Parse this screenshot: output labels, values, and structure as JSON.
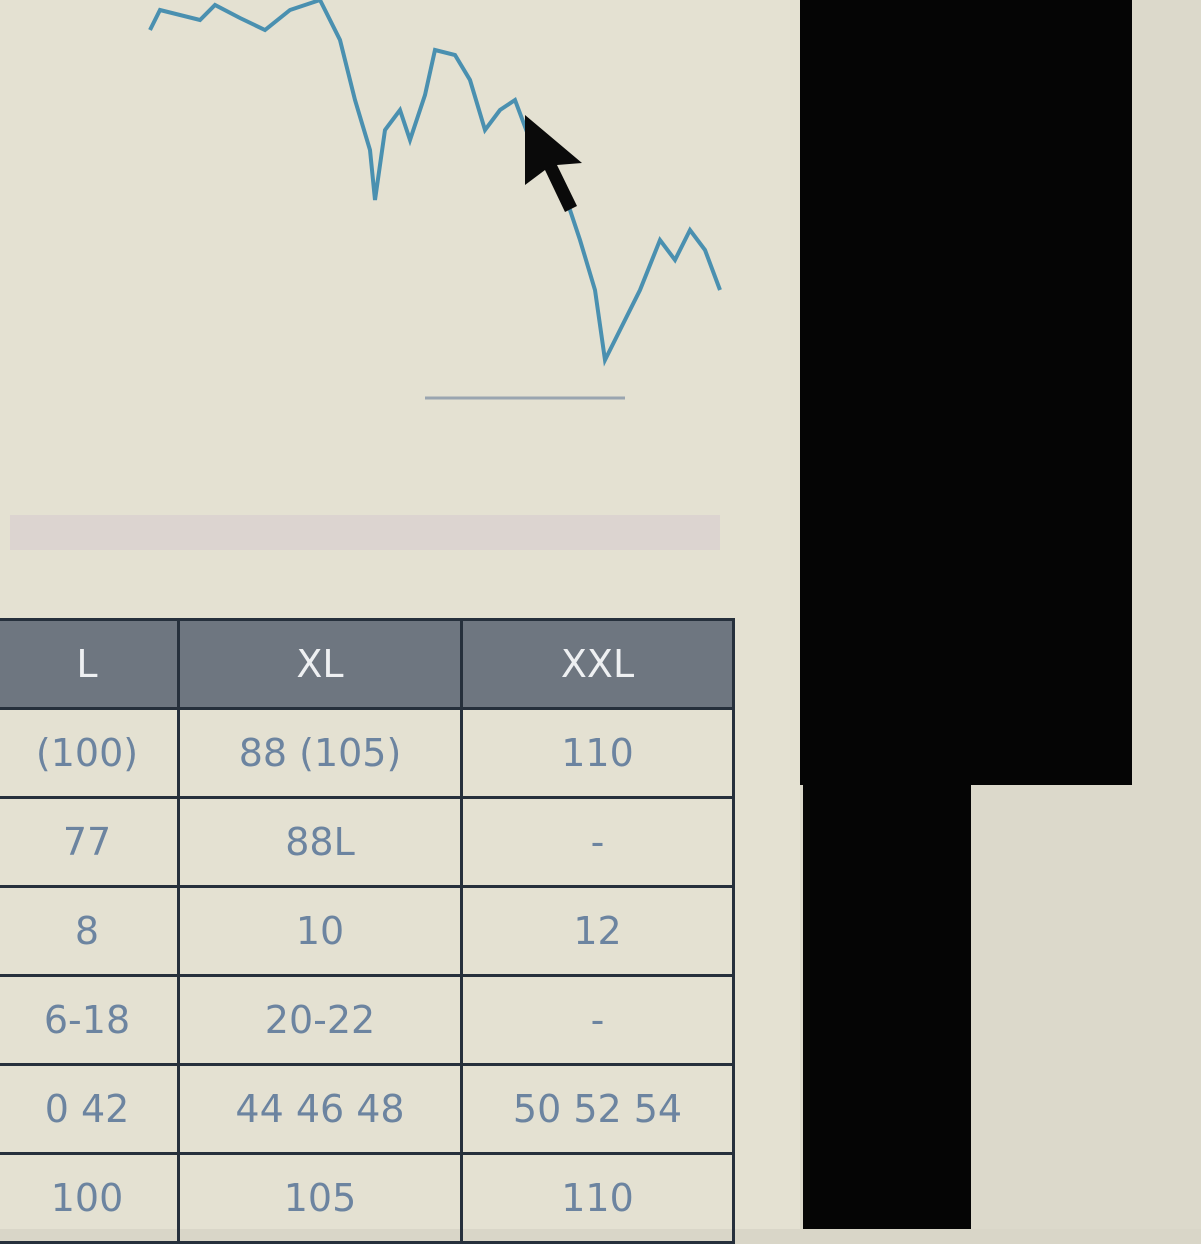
{
  "table": {
    "header": [
      "L",
      "XL",
      "XXL"
    ],
    "rows": [
      [
        "(100)",
        "88 (105)",
        "110"
      ],
      [
        "77",
        "88L",
        "-"
      ],
      [
        "8",
        "10",
        "12"
      ],
      [
        "6-18",
        "20-22",
        "-"
      ],
      [
        "0 42",
        "44 46 48",
        "50 52 54"
      ],
      [
        "100",
        "105",
        "110"
      ]
    ]
  }
}
